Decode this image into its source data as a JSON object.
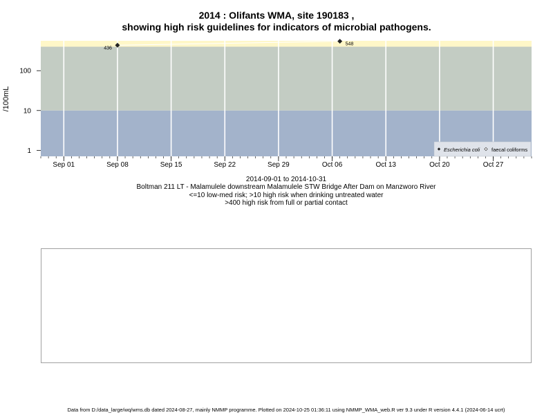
{
  "title_line1": "2014 : Olifants WMA, site 190183 ,",
  "title_line2": "showing high risk guidelines for indicators of microbial pathogens.",
  "captions": [
    "2014-09-01 to 2014-10-31",
    "Boltman 211 LT - Malamulele downstream Malamulele STW Bridge After Dam on Manzworo River",
    "<=10 low-med risk; >10 high risk when drinking untreated water",
    ">400 high risk from full or partial contact"
  ],
  "footer": "Data from D:/data_large/wq/wms.db dated 2024-08-27, mainly NMMP programme. Plotted on 2024-10-25 01:36:11 using NMMP_WMA_web.R ver 9.3 under R version 4.4.1 (2024-06-14 ucrt)",
  "chart_data": {
    "type": "scatter",
    "ylabel": "/100mL",
    "y_scale": "log",
    "x_range": [
      "2014-08-29",
      "2014-11-01"
    ],
    "y_range_log10": [
      -0.15,
      2.75
    ],
    "x_ticks": [
      {
        "date": "2014-09-01",
        "label": "Sep 01"
      },
      {
        "date": "2014-09-08",
        "label": "Sep 08"
      },
      {
        "date": "2014-09-15",
        "label": "Sep 15"
      },
      {
        "date": "2014-09-22",
        "label": "Sep 22"
      },
      {
        "date": "2014-09-29",
        "label": "Sep 29"
      },
      {
        "date": "2014-10-06",
        "label": "Oct 06"
      },
      {
        "date": "2014-10-13",
        "label": "Oct 13"
      },
      {
        "date": "2014-10-20",
        "label": "Oct 20"
      },
      {
        "date": "2014-10-27",
        "label": "Oct 27"
      }
    ],
    "y_ticks": [
      {
        "value": 1,
        "label": "1"
      },
      {
        "value": 10,
        "label": "10"
      },
      {
        "value": 100,
        "label": "100"
      }
    ],
    "risk_bands": [
      {
        "from": null,
        "to": 10,
        "color": "#a3b3cb"
      },
      {
        "from": 10,
        "to": 400,
        "color": "#c3ccc3"
      },
      {
        "from": 400,
        "to": null,
        "color": "#fff7c8"
      }
    ],
    "series": [
      {
        "name": "Escherichia coli",
        "marker": "filled-diamond",
        "points": [
          {
            "date": "2014-09-08",
            "value": 436,
            "label": "436"
          },
          {
            "date": "2014-10-07",
            "value": 548,
            "label": "548"
          }
        ]
      },
      {
        "name": "faecal coliforms",
        "marker": "open-diamond",
        "points": []
      }
    ],
    "legend_position": "bottom-right"
  }
}
